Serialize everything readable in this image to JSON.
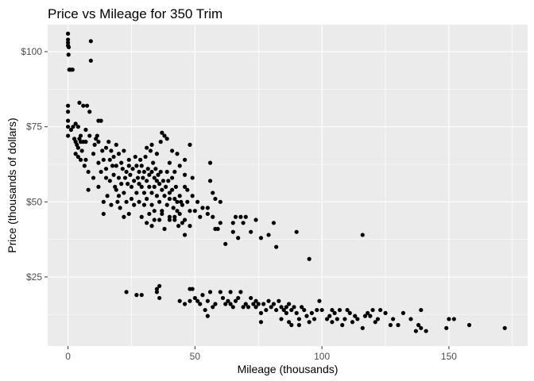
{
  "chart_data": {
    "type": "scatter",
    "title": "Price vs Mileage for 350 Trim",
    "xlabel": "Mileage (thousands)",
    "ylabel": "Price (thousands of dollars)",
    "xlim": [
      -8,
      181
    ],
    "ylim": [
      2,
      109
    ],
    "x_ticks": [
      0,
      50,
      100,
      150
    ],
    "x_tick_labels": [
      "0",
      "50",
      "100",
      "150"
    ],
    "y_ticks": [
      25,
      50,
      75,
      100
    ],
    "y_tick_labels": [
      "$25",
      "$50",
      "$75",
      "$100"
    ],
    "grid": true,
    "legend": "none",
    "colors": {
      "panel": "#ebebeb",
      "grid": "#ffffff",
      "point": "#000000",
      "tick": "#4d4d4d"
    },
    "points": [
      [
        0,
        106
      ],
      [
        0,
        104
      ],
      [
        0,
        103
      ],
      [
        0,
        102
      ],
      [
        0.3,
        101.5
      ],
      [
        0.2,
        99
      ],
      [
        0.5,
        94
      ],
      [
        1,
        94
      ],
      [
        1.8,
        94
      ],
      [
        9,
        103.5
      ],
      [
        9,
        97
      ],
      [
        0,
        82
      ],
      [
        0,
        80
      ],
      [
        0,
        77
      ],
      [
        0,
        75
      ],
      [
        0,
        72
      ],
      [
        1.2,
        74
      ],
      [
        2,
        75
      ],
      [
        3,
        76
      ],
      [
        4,
        75
      ],
      [
        5,
        72
      ],
      [
        4.5,
        83
      ],
      [
        6,
        82
      ],
      [
        7.5,
        82
      ],
      [
        8.5,
        80
      ],
      [
        12,
        77
      ],
      [
        13,
        77
      ],
      [
        2.5,
        71
      ],
      [
        3,
        70
      ],
      [
        3.5,
        69
      ],
      [
        4,
        68
      ],
      [
        4.5,
        71
      ],
      [
        5,
        70
      ],
      [
        6,
        70
      ],
      [
        7,
        70
      ],
      [
        7,
        74
      ],
      [
        8.5,
        72
      ],
      [
        3,
        66
      ],
      [
        4,
        65
      ],
      [
        5,
        64
      ],
      [
        5.5,
        67
      ],
      [
        6.5,
        62
      ],
      [
        7,
        64
      ],
      [
        8,
        60
      ],
      [
        8,
        54
      ],
      [
        10,
        58
      ],
      [
        10,
        66
      ],
      [
        10.5,
        69
      ],
      [
        11,
        71
      ],
      [
        11.5,
        72
      ],
      [
        12,
        70
      ],
      [
        12,
        63
      ],
      [
        12,
        55
      ],
      [
        13,
        60
      ],
      [
        13.5,
        67
      ],
      [
        14,
        64
      ],
      [
        14,
        50
      ],
      [
        14,
        46
      ],
      [
        15,
        68
      ],
      [
        15,
        61
      ],
      [
        15,
        58
      ],
      [
        15.5,
        52
      ],
      [
        16,
        70
      ],
      [
        16.5,
        64
      ],
      [
        16.5,
        57
      ],
      [
        17,
        67
      ],
      [
        17,
        49
      ],
      [
        17.5,
        62
      ],
      [
        18,
        65
      ],
      [
        18,
        59
      ],
      [
        18.5,
        55
      ],
      [
        19,
        69
      ],
      [
        19,
        62
      ],
      [
        19,
        54
      ],
      [
        19.5,
        50
      ],
      [
        20,
        66
      ],
      [
        20,
        58
      ],
      [
        20,
        52
      ],
      [
        20.5,
        48
      ],
      [
        21,
        63
      ],
      [
        21,
        56
      ],
      [
        21.5,
        61
      ],
      [
        22,
        67
      ],
      [
        22,
        53
      ],
      [
        22,
        45
      ],
      [
        22.5,
        58
      ],
      [
        23,
        60
      ],
      [
        23,
        50
      ],
      [
        23.5,
        56
      ],
      [
        24,
        64
      ],
      [
        24,
        62
      ],
      [
        24,
        46
      ],
      [
        24.5,
        59
      ],
      [
        25,
        55
      ],
      [
        25,
        51
      ],
      [
        25.5,
        61
      ],
      [
        26,
        57
      ],
      [
        26,
        49
      ],
      [
        26.5,
        65
      ],
      [
        27,
        62
      ],
      [
        27,
        53
      ],
      [
        27.5,
        58
      ],
      [
        28,
        60
      ],
      [
        28,
        56
      ],
      [
        28,
        50
      ],
      [
        28.5,
        64
      ],
      [
        29,
        62
      ],
      [
        29,
        55
      ],
      [
        29.5,
        58
      ],
      [
        30,
        60
      ],
      [
        30,
        53
      ],
      [
        30,
        49
      ],
      [
        30.5,
        65
      ],
      [
        31,
        57
      ],
      [
        31,
        51
      ],
      [
        31.5,
        61
      ],
      [
        32,
        59
      ],
      [
        32,
        55
      ],
      [
        32,
        46
      ],
      [
        32.5,
        67
      ],
      [
        33,
        60
      ],
      [
        33,
        53
      ],
      [
        33,
        49
      ],
      [
        33.5,
        63
      ],
      [
        34,
        58
      ],
      [
        34,
        55
      ],
      [
        34,
        47
      ],
      [
        34.5,
        61
      ],
      [
        35,
        57
      ],
      [
        35,
        52
      ],
      [
        35.5,
        59
      ],
      [
        36,
        56
      ],
      [
        36,
        50
      ],
      [
        36,
        44
      ],
      [
        36.5,
        60
      ],
      [
        37,
        54
      ],
      [
        37,
        47
      ],
      [
        37.5,
        57
      ],
      [
        38,
        52
      ],
      [
        38,
        41
      ],
      [
        38.5,
        55
      ],
      [
        39,
        60
      ],
      [
        39,
        49
      ],
      [
        39.5,
        57
      ],
      [
        40,
        53
      ],
      [
        40,
        51
      ],
      [
        40,
        45
      ],
      [
        41,
        58
      ],
      [
        41,
        54
      ],
      [
        41.5,
        48
      ],
      [
        42,
        51
      ],
      [
        42,
        44
      ],
      [
        42.5,
        55
      ],
      [
        43,
        50
      ],
      [
        43,
        47
      ],
      [
        43.5,
        42
      ],
      [
        44,
        52
      ],
      [
        44,
        46
      ],
      [
        44.5,
        50
      ],
      [
        45,
        49
      ],
      [
        45,
        43
      ],
      [
        36.5,
        70
      ],
      [
        38,
        72
      ],
      [
        39,
        71
      ],
      [
        37,
        73
      ],
      [
        33,
        69
      ],
      [
        31,
        68
      ],
      [
        35,
        66
      ],
      [
        41,
        67
      ],
      [
        43,
        66
      ],
      [
        40,
        63
      ],
      [
        42,
        60
      ],
      [
        46,
        64
      ],
      [
        48,
        69
      ],
      [
        44,
        62
      ],
      [
        29,
        45
      ],
      [
        31,
        43
      ],
      [
        33,
        42
      ],
      [
        34,
        44
      ],
      [
        37,
        46
      ],
      [
        40,
        44
      ],
      [
        42,
        45
      ],
      [
        46,
        55
      ],
      [
        47,
        54
      ],
      [
        49,
        52
      ],
      [
        47,
        50
      ],
      [
        48,
        47
      ],
      [
        46,
        44
      ],
      [
        46,
        39
      ],
      [
        48,
        42
      ],
      [
        51,
        50
      ],
      [
        50,
        47
      ],
      [
        52,
        45
      ],
      [
        46,
        59
      ],
      [
        49,
        58
      ],
      [
        53,
        48
      ],
      [
        55,
        48
      ],
      [
        55,
        46
      ],
      [
        56,
        63
      ],
      [
        56,
        57
      ],
      [
        57,
        53
      ],
      [
        57,
        45
      ],
      [
        58,
        41
      ],
      [
        58,
        51
      ],
      [
        59,
        41
      ],
      [
        60,
        43
      ],
      [
        60,
        50
      ],
      [
        62,
        36
      ],
      [
        65,
        40
      ],
      [
        65,
        43
      ],
      [
        66,
        45
      ],
      [
        67,
        38
      ],
      [
        69,
        43
      ],
      [
        68,
        45
      ],
      [
        70,
        45
      ],
      [
        72,
        40
      ],
      [
        74,
        44
      ],
      [
        76,
        38
      ],
      [
        79,
        39
      ],
      [
        81,
        43
      ],
      [
        82,
        35
      ],
      [
        90,
        40
      ],
      [
        95,
        31
      ],
      [
        116,
        39
      ],
      [
        23,
        20
      ],
      [
        27,
        19
      ],
      [
        29,
        19
      ],
      [
        35,
        21
      ],
      [
        36,
        22
      ],
      [
        35,
        20
      ],
      [
        36,
        18
      ],
      [
        44,
        17
      ],
      [
        46,
        16
      ],
      [
        48,
        21
      ],
      [
        49,
        21
      ],
      [
        48,
        17
      ],
      [
        50,
        18
      ],
      [
        51,
        17
      ],
      [
        52,
        16
      ],
      [
        53,
        19
      ],
      [
        54,
        14
      ],
      [
        55,
        12
      ],
      [
        55,
        17
      ],
      [
        56,
        20
      ],
      [
        57,
        15
      ],
      [
        58,
        16
      ],
      [
        60,
        20
      ],
      [
        61,
        18
      ],
      [
        62,
        16
      ],
      [
        63,
        17
      ],
      [
        64,
        16
      ],
      [
        65,
        15
      ],
      [
        64,
        20
      ],
      [
        66,
        17
      ],
      [
        67,
        18
      ],
      [
        68,
        20
      ],
      [
        69,
        15
      ],
      [
        70,
        16
      ],
      [
        71,
        15
      ],
      [
        72,
        18
      ],
      [
        73,
        16
      ],
      [
        74,
        17
      ],
      [
        74,
        15
      ],
      [
        75,
        16
      ],
      [
        76,
        13
      ],
      [
        77,
        16
      ],
      [
        78,
        14
      ],
      [
        79,
        17
      ],
      [
        80,
        15
      ],
      [
        81,
        16
      ],
      [
        82,
        14
      ],
      [
        83,
        17
      ],
      [
        84,
        15
      ],
      [
        85,
        14
      ],
      [
        86,
        15
      ],
      [
        87,
        16
      ],
      [
        88,
        14
      ],
      [
        89,
        15
      ],
      [
        90,
        13
      ],
      [
        91,
        11
      ],
      [
        92,
        15
      ],
      [
        76,
        10
      ],
      [
        84,
        11
      ],
      [
        86,
        13
      ],
      [
        87,
        10
      ],
      [
        88,
        9
      ],
      [
        91,
        9
      ],
      [
        93,
        14
      ],
      [
        94,
        12
      ],
      [
        95,
        10
      ],
      [
        96,
        13
      ],
      [
        97,
        11
      ],
      [
        98,
        14
      ],
      [
        99,
        17
      ],
      [
        100,
        14
      ],
      [
        102,
        11
      ],
      [
        103,
        12
      ],
      [
        104,
        14
      ],
      [
        104,
        10
      ],
      [
        105,
        13
      ],
      [
        106,
        11
      ],
      [
        107,
        14
      ],
      [
        108,
        9
      ],
      [
        109,
        11
      ],
      [
        110,
        14
      ],
      [
        111,
        13
      ],
      [
        112,
        10
      ],
      [
        113,
        12
      ],
      [
        114,
        11
      ],
      [
        116,
        8
      ],
      [
        117,
        12
      ],
      [
        118,
        13
      ],
      [
        119,
        12
      ],
      [
        120,
        14
      ],
      [
        121,
        10
      ],
      [
        122,
        11
      ],
      [
        123,
        14
      ],
      [
        125,
        13
      ],
      [
        127,
        9
      ],
      [
        128,
        11
      ],
      [
        130,
        9
      ],
      [
        132,
        13
      ],
      [
        135,
        11
      ],
      [
        137,
        7
      ],
      [
        138,
        9
      ],
      [
        139,
        8
      ],
      [
        139,
        14
      ],
      [
        141,
        7
      ],
      [
        149,
        8
      ],
      [
        150,
        11
      ],
      [
        152,
        11
      ],
      [
        158,
        9
      ],
      [
        172,
        8
      ]
    ]
  }
}
